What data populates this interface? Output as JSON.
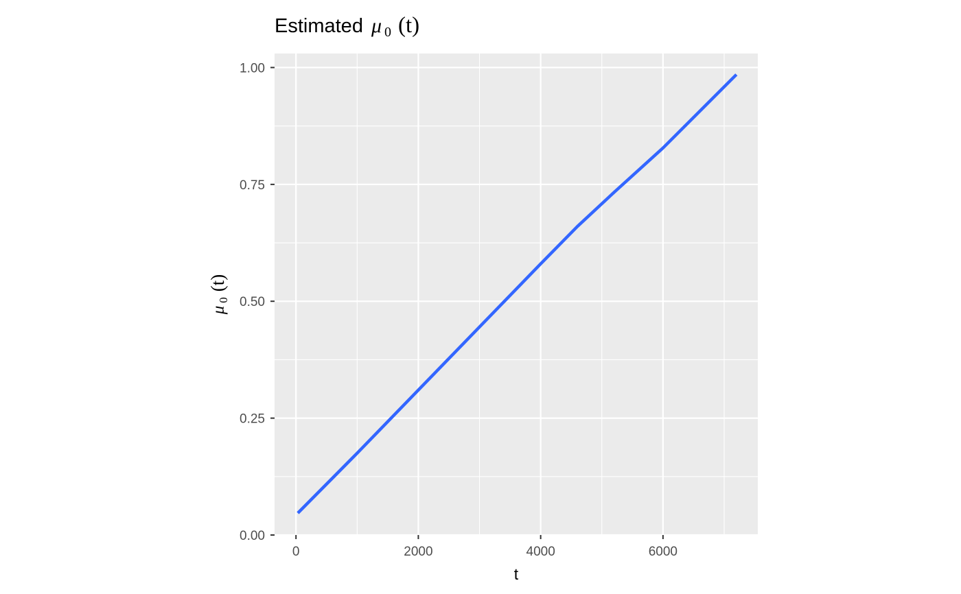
{
  "chart_data": {
    "type": "line",
    "title": {
      "prefix": "Estimated",
      "symbol": "μ",
      "subscript": "0",
      "argument": "(t)"
    },
    "xlabel": "t",
    "ylabel": {
      "symbol": "μ",
      "subscript": "0",
      "argument": "(t)"
    },
    "xlim": [
      -350,
      7550
    ],
    "ylim": [
      0,
      1.03
    ],
    "x_ticks": [
      0,
      2000,
      4000,
      6000
    ],
    "x_tick_labels": [
      "0",
      "2000",
      "4000",
      "6000"
    ],
    "y_ticks": [
      0,
      0.25,
      0.5,
      0.75,
      1.0
    ],
    "y_tick_labels": [
      "0.00",
      "0.25",
      "0.50",
      "0.75",
      "1.00"
    ],
    "grid": true,
    "legend": "none",
    "series": [
      {
        "color": "#3366ff",
        "x": [
          30,
          1000,
          2000,
          3000,
          4000,
          4600,
          5200,
          6000,
          7200
        ],
        "y": [
          0.047,
          0.175,
          0.31,
          0.445,
          0.58,
          0.66,
          0.733,
          0.828,
          0.985
        ]
      }
    ],
    "colors": {
      "panel_background": "#ebebeb",
      "grid": "#ffffff",
      "line": "#3366ff"
    }
  }
}
